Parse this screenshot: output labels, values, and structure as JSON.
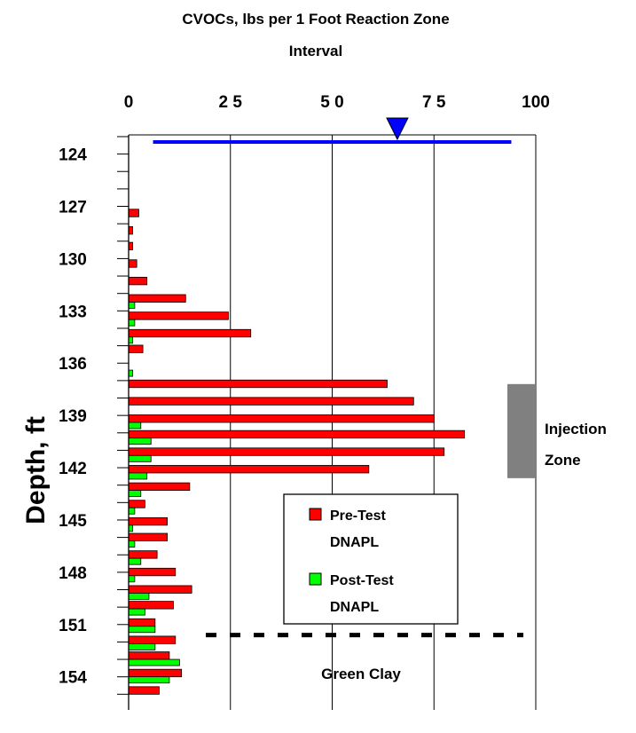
{
  "chart_data": {
    "type": "bar",
    "orientation": "horizontal",
    "title": "CVOCs, lbs per 1 Foot Reaction Zone Interval",
    "title_lines": [
      "CVOCs, lbs per 1 Foot Reaction Zone",
      "Interval"
    ],
    "ylabel": "Depth, ft",
    "xlabel": "",
    "xlim": [
      0,
      100
    ],
    "x_ticks": [
      "0",
      "2 5",
      "5 0",
      "7 5",
      "100"
    ],
    "y_ticks": [
      "124",
      "127",
      "130",
      "133",
      "136",
      "139",
      "142",
      "145",
      "148",
      "151",
      "154"
    ],
    "y_tick_values": [
      124,
      127,
      130,
      133,
      136,
      139,
      142,
      145,
      148,
      151,
      154
    ],
    "ylim": [
      123,
      155.8
    ],
    "grid": "vertical",
    "legend_position": "lower-right",
    "depths": [
      127.6,
      128.6,
      129.5,
      130.5,
      131.5,
      132.5,
      133.5,
      134.5,
      135.4,
      136.4,
      137.4,
      138.4,
      139.4,
      140.3,
      141.3,
      142.3,
      143.3,
      144.3,
      145.3,
      146.2,
      147.2,
      148.2,
      149.2,
      150.1,
      151.1,
      152.1,
      153.0,
      154.0,
      155.0
    ],
    "series": [
      {
        "name": "Pre-Test DNAPL",
        "color": "#ff0000",
        "values": [
          2.5,
          1,
          1,
          2,
          4.5,
          14,
          24.5,
          30,
          3.5,
          0,
          63.5,
          70,
          75,
          82.5,
          77.5,
          59,
          15,
          4,
          9.5,
          9.5,
          7,
          11.5,
          15.5,
          11,
          6.5,
          11.5,
          10,
          13,
          7.5
        ]
      },
      {
        "name": "Post-Test DNAPL",
        "color": "#00ff00",
        "values": [
          0,
          0,
          0,
          0,
          0,
          1.5,
          1.5,
          1,
          0,
          1,
          0,
          0,
          3,
          5.5,
          5.5,
          4.5,
          3,
          1.5,
          1,
          1.5,
          3,
          1.5,
          5,
          4,
          6.5,
          6.5,
          12.5,
          10,
          0
        ]
      }
    ],
    "water_table": {
      "x_start": 6,
      "x_end": 94,
      "depth": 123.8,
      "marker_x": 66,
      "color": "#0000ff"
    },
    "injection_zone": {
      "label_lines": [
        "Injection",
        "Zone"
      ],
      "top": 137.2,
      "bottom": 142.6,
      "color": "#808080"
    },
    "green_clay": {
      "label": "Green Clay",
      "depth": 151.6
    }
  }
}
